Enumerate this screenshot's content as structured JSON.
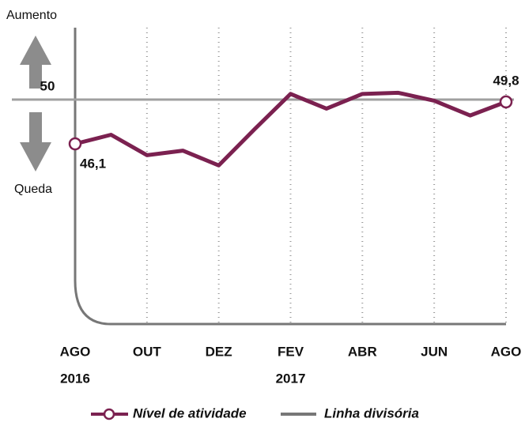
{
  "chart_data": {
    "type": "line",
    "annotations": {
      "top": "Aumento",
      "bottom": "Queda"
    },
    "categories": [
      "AGO",
      null,
      "OUT",
      null,
      "DEZ",
      null,
      "FEV",
      null,
      "ABR",
      null,
      "JUN",
      null,
      "AGO"
    ],
    "category_years": [
      "2016",
      null,
      null,
      null,
      null,
      null,
      "2017",
      null,
      null,
      null,
      null,
      null,
      null
    ],
    "series": [
      {
        "name": "Nível de atividade",
        "color": "#7b2150",
        "values": [
          46.1,
          46.9,
          45.1,
          45.5,
          44.2,
          47.4,
          50.5,
          49.2,
          50.5,
          50.6,
          49.9,
          48.6,
          49.8
        ],
        "value_labels": [
          "46,1",
          null,
          null,
          null,
          null,
          null,
          null,
          null,
          null,
          null,
          null,
          null,
          "49,8"
        ]
      }
    ],
    "reference": {
      "name": "Linha divisória",
      "value": 50,
      "label": "50",
      "color": "#a0a0a0"
    },
    "ylim": [
      43,
      52
    ]
  }
}
